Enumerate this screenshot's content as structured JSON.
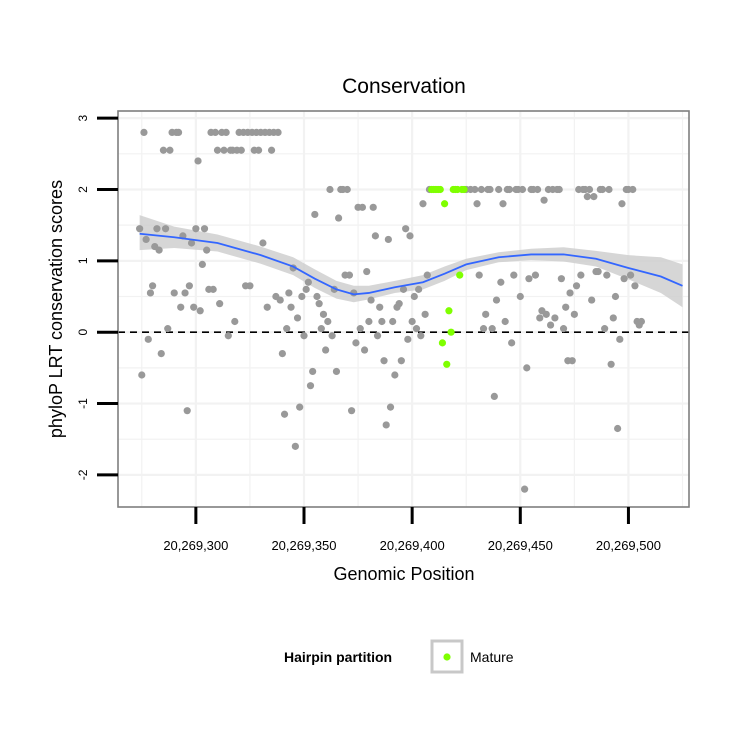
{
  "chart_data": {
    "type": "scatter",
    "title": "Conservation",
    "xlabel": "Genomic Position",
    "ylabel": "phyloP LRT conservation scores",
    "xlim": [
      20269264,
      20269528
    ],
    "ylim": [
      -2.45,
      3.1
    ],
    "x_ticks": [
      20269300,
      20269350,
      20269400,
      20269450,
      20269500
    ],
    "x_tick_labels": [
      "20,269,300",
      "20,269,350",
      "20,269,400",
      "20,269,450",
      "20,269,500"
    ],
    "y_ticks": [
      -2,
      -1,
      0,
      1,
      2,
      3
    ],
    "y_tick_labels": [
      "-2",
      "-1",
      "0",
      "1",
      "2",
      "3"
    ],
    "hline": {
      "y": 0,
      "style": "dashed"
    },
    "grid": true,
    "legend": {
      "title": "Hairpin partition",
      "position": "bottom",
      "entries": [
        {
          "label": "Mature",
          "color": "#7fff00"
        }
      ]
    },
    "colors": {
      "other": "#999999",
      "mature": "#7fff00",
      "smooth": "#3366ff",
      "ribbon": "#cccccc"
    },
    "series": [
      {
        "name": "",
        "color": "#999999",
        "points": [
          [
            20269274,
            1.45
          ],
          [
            20269275,
            -0.6
          ],
          [
            20269276,
            2.8
          ],
          [
            20269277,
            1.3
          ],
          [
            20269278,
            -0.1
          ],
          [
            20269279,
            0.55
          ],
          [
            20269280,
            0.65
          ],
          [
            20269281,
            1.2
          ],
          [
            20269282,
            1.45
          ],
          [
            20269283,
            1.15
          ],
          [
            20269284,
            -0.3
          ],
          [
            20269285,
            2.55
          ],
          [
            20269286,
            1.45
          ],
          [
            20269287,
            0.05
          ],
          [
            20269288,
            2.55
          ],
          [
            20269289,
            2.8
          ],
          [
            20269290,
            0.55
          ],
          [
            20269291,
            2.8
          ],
          [
            20269292,
            2.8
          ],
          [
            20269293,
            0.35
          ],
          [
            20269294,
            1.35
          ],
          [
            20269295,
            0.55
          ],
          [
            20269296,
            -1.1
          ],
          [
            20269297,
            0.65
          ],
          [
            20269298,
            1.25
          ],
          [
            20269299,
            0.35
          ],
          [
            20269300,
            1.45
          ],
          [
            20269301,
            2.4
          ],
          [
            20269302,
            0.3
          ],
          [
            20269303,
            0.95
          ],
          [
            20269304,
            1.45
          ],
          [
            20269305,
            1.15
          ],
          [
            20269306,
            0.6
          ],
          [
            20269307,
            2.8
          ],
          [
            20269308,
            0.6
          ],
          [
            20269309,
            2.8
          ],
          [
            20269310,
            2.55
          ],
          [
            20269311,
            0.4
          ],
          [
            20269312,
            2.8
          ],
          [
            20269313,
            2.55
          ],
          [
            20269314,
            2.8
          ],
          [
            20269315,
            -0.05
          ],
          [
            20269316,
            2.55
          ],
          [
            20269317,
            2.55
          ],
          [
            20269318,
            0.15
          ],
          [
            20269319,
            2.55
          ],
          [
            20269320,
            2.8
          ],
          [
            20269321,
            2.55
          ],
          [
            20269322,
            2.8
          ],
          [
            20269323,
            0.65
          ],
          [
            20269324,
            2.8
          ],
          [
            20269325,
            0.65
          ],
          [
            20269326,
            2.8
          ],
          [
            20269327,
            2.55
          ],
          [
            20269328,
            2.8
          ],
          [
            20269329,
            2.55
          ],
          [
            20269330,
            2.8
          ],
          [
            20269331,
            1.25
          ],
          [
            20269332,
            2.8
          ],
          [
            20269333,
            0.35
          ],
          [
            20269334,
            2.8
          ],
          [
            20269335,
            2.55
          ],
          [
            20269336,
            2.8
          ],
          [
            20269337,
            0.5
          ],
          [
            20269338,
            2.8
          ],
          [
            20269339,
            0.45
          ],
          [
            20269340,
            -0.3
          ],
          [
            20269341,
            -1.15
          ],
          [
            20269342,
            0.05
          ],
          [
            20269343,
            0.55
          ],
          [
            20269344,
            0.35
          ],
          [
            20269345,
            0.9
          ],
          [
            20269346,
            -1.6
          ],
          [
            20269347,
            0.2
          ],
          [
            20269348,
            -1.05
          ],
          [
            20269349,
            0.5
          ],
          [
            20269350,
            -0.05
          ],
          [
            20269351,
            0.6
          ],
          [
            20269352,
            0.7
          ],
          [
            20269353,
            -0.75
          ],
          [
            20269354,
            -0.55
          ],
          [
            20269355,
            1.65
          ],
          [
            20269356,
            0.5
          ],
          [
            20269357,
            0.4
          ],
          [
            20269358,
            0.05
          ],
          [
            20269359,
            0.25
          ],
          [
            20269360,
            -0.25
          ],
          [
            20269361,
            0.15
          ],
          [
            20269362,
            2.0
          ],
          [
            20269363,
            -0.05
          ],
          [
            20269364,
            0.6
          ],
          [
            20269365,
            -0.55
          ],
          [
            20269366,
            1.6
          ],
          [
            20269367,
            2.0
          ],
          [
            20269368,
            2.0
          ],
          [
            20269369,
            0.8
          ],
          [
            20269370,
            2.0
          ],
          [
            20269371,
            0.8
          ],
          [
            20269372,
            -1.1
          ],
          [
            20269373,
            0.55
          ],
          [
            20269374,
            -0.15
          ],
          [
            20269375,
            1.75
          ],
          [
            20269376,
            0.05
          ],
          [
            20269377,
            1.75
          ],
          [
            20269378,
            -0.25
          ],
          [
            20269379,
            0.85
          ],
          [
            20269380,
            0.15
          ],
          [
            20269381,
            0.45
          ],
          [
            20269382,
            1.75
          ],
          [
            20269383,
            1.35
          ],
          [
            20269384,
            -0.05
          ],
          [
            20269385,
            0.35
          ],
          [
            20269386,
            0.15
          ],
          [
            20269387,
            -0.4
          ],
          [
            20269388,
            -1.3
          ],
          [
            20269389,
            1.3
          ],
          [
            20269390,
            -1.05
          ],
          [
            20269391,
            0.15
          ],
          [
            20269392,
            -0.6
          ],
          [
            20269393,
            0.35
          ],
          [
            20269394,
            0.4
          ],
          [
            20269395,
            -0.4
          ],
          [
            20269396,
            0.6
          ],
          [
            20269397,
            1.45
          ],
          [
            20269398,
            -0.1
          ],
          [
            20269399,
            1.35
          ],
          [
            20269400,
            0.15
          ],
          [
            20269401,
            0.5
          ],
          [
            20269402,
            0.05
          ],
          [
            20269403,
            0.6
          ],
          [
            20269404,
            -0.05
          ],
          [
            20269405,
            1.8
          ],
          [
            20269406,
            0.25
          ],
          [
            20269407,
            0.8
          ],
          [
            20269408,
            2.0
          ],
          [
            20269425,
            2.0
          ],
          [
            20269427,
            2.0
          ],
          [
            20269429,
            2.0
          ],
          [
            20269430,
            1.8
          ],
          [
            20269431,
            0.8
          ],
          [
            20269432,
            2.0
          ],
          [
            20269433,
            0.05
          ],
          [
            20269434,
            0.25
          ],
          [
            20269435,
            2.0
          ],
          [
            20269436,
            2.0
          ],
          [
            20269437,
            0.05
          ],
          [
            20269438,
            -0.9
          ],
          [
            20269439,
            0.45
          ],
          [
            20269440,
            2.0
          ],
          [
            20269441,
            0.7
          ],
          [
            20269442,
            1.8
          ],
          [
            20269443,
            0.15
          ],
          [
            20269444,
            2.0
          ],
          [
            20269445,
            2.0
          ],
          [
            20269446,
            -0.15
          ],
          [
            20269447,
            0.8
          ],
          [
            20269448,
            2.0
          ],
          [
            20269449,
            2.0
          ],
          [
            20269450,
            0.5
          ],
          [
            20269451,
            2.0
          ],
          [
            20269452,
            -2.2
          ],
          [
            20269453,
            -0.5
          ],
          [
            20269454,
            0.75
          ],
          [
            20269455,
            2.0
          ],
          [
            20269456,
            2.0
          ],
          [
            20269457,
            0.8
          ],
          [
            20269458,
            2.0
          ],
          [
            20269459,
            0.2
          ],
          [
            20269460,
            0.3
          ],
          [
            20269461,
            1.85
          ],
          [
            20269462,
            0.25
          ],
          [
            20269463,
            2.0
          ],
          [
            20269464,
            0.1
          ],
          [
            20269465,
            2.0
          ],
          [
            20269466,
            0.2
          ],
          [
            20269467,
            2.0
          ],
          [
            20269468,
            2.0
          ],
          [
            20269469,
            0.75
          ],
          [
            20269470,
            0.05
          ],
          [
            20269471,
            0.35
          ],
          [
            20269472,
            -0.4
          ],
          [
            20269473,
            0.55
          ],
          [
            20269474,
            -0.4
          ],
          [
            20269475,
            0.25
          ],
          [
            20269476,
            0.65
          ],
          [
            20269477,
            2.0
          ],
          [
            20269478,
            0.8
          ],
          [
            20269479,
            2.0
          ],
          [
            20269480,
            2.0
          ],
          [
            20269481,
            1.9
          ],
          [
            20269482,
            2.0
          ],
          [
            20269483,
            0.45
          ],
          [
            20269484,
            1.9
          ],
          [
            20269485,
            0.85
          ],
          [
            20269486,
            0.85
          ],
          [
            20269487,
            2.0
          ],
          [
            20269488,
            2.0
          ],
          [
            20269489,
            0.05
          ],
          [
            20269490,
            0.8
          ],
          [
            20269491,
            2.0
          ],
          [
            20269492,
            -0.45
          ],
          [
            20269493,
            0.2
          ],
          [
            20269494,
            0.5
          ],
          [
            20269495,
            -1.35
          ],
          [
            20269496,
            -0.1
          ],
          [
            20269497,
            1.8
          ],
          [
            20269498,
            0.75
          ],
          [
            20269499,
            2.0
          ],
          [
            20269500,
            2.0
          ],
          [
            20269501,
            0.8
          ],
          [
            20269502,
            2.0
          ],
          [
            20269503,
            0.65
          ],
          [
            20269504,
            0.15
          ],
          [
            20269505,
            0.1
          ],
          [
            20269506,
            0.15
          ]
        ]
      },
      {
        "name": "Mature",
        "color": "#7fff00",
        "points": [
          [
            20269409,
            2.0
          ],
          [
            20269410,
            2.0
          ],
          [
            20269411,
            2.0
          ],
          [
            20269412,
            2.0
          ],
          [
            20269413,
            2.0
          ],
          [
            20269414,
            -0.15
          ],
          [
            20269415,
            1.8
          ],
          [
            20269416,
            -0.45
          ],
          [
            20269417,
            0.3
          ],
          [
            20269418,
            0.0
          ],
          [
            20269419,
            2.0
          ],
          [
            20269420,
            2.0
          ],
          [
            20269421,
            2.0
          ],
          [
            20269422,
            0.8
          ],
          [
            20269423,
            2.0
          ],
          [
            20269424,
            2.0
          ]
        ]
      }
    ],
    "smooth": {
      "name": "",
      "x": [
        20269274,
        20269290,
        20269310,
        20269330,
        20269345,
        20269355,
        20269365,
        20269373,
        20269380,
        20269392,
        20269405,
        20269415,
        20269425,
        20269440,
        20269455,
        20269470,
        20269485,
        20269500,
        20269515,
        20269525
      ],
      "y": [
        1.38,
        1.33,
        1.25,
        1.08,
        0.92,
        0.75,
        0.6,
        0.53,
        0.55,
        0.63,
        0.7,
        0.82,
        0.95,
        1.05,
        1.09,
        1.09,
        1.03,
        0.9,
        0.78,
        0.65
      ],
      "lower": [
        1.15,
        1.18,
        1.13,
        0.96,
        0.8,
        0.62,
        0.47,
        0.42,
        0.46,
        0.55,
        0.6,
        0.72,
        0.87,
        0.98,
        1.01,
        0.99,
        0.92,
        0.74,
        0.55,
        0.35
      ],
      "upper": [
        1.64,
        1.48,
        1.37,
        1.2,
        1.05,
        0.88,
        0.72,
        0.65,
        0.65,
        0.72,
        0.8,
        0.92,
        1.03,
        1.12,
        1.17,
        1.19,
        1.14,
        1.08,
        1.05,
        0.95
      ]
    }
  }
}
